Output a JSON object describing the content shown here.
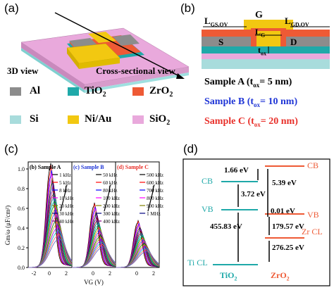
{
  "panel_a": {
    "tag": "(a)",
    "caption_3d": "3D view",
    "caption_cross": "Cross-sectional view",
    "legend": [
      {
        "label": "Al",
        "color": "#8c8c8c"
      },
      {
        "label": "TiO",
        "sub": "2",
        "color": "#1fa9a9"
      },
      {
        "label": "ZrO",
        "sub": "2",
        "color": "#ee5a35"
      },
      {
        "label": "Si",
        "color": "#a8dcdc"
      },
      {
        "label": "Ni/Au",
        "color": "#f2c811"
      },
      {
        "label": "SiO",
        "sub": "2",
        "color": "#e9a9dc"
      }
    ]
  },
  "panel_b": {
    "tag": "(b)",
    "labels": {
      "gs": "L",
      "gs_sub": "GS,OV",
      "g": "G",
      "gd": "L",
      "gd_sub": "GD,OV",
      "lg": "L",
      "lg_sub": "G",
      "s": "S",
      "d": "D",
      "tox": "t",
      "tox_sub": "ox"
    },
    "samples": [
      {
        "name": "Sample A",
        "value": "5 nm",
        "color": "#000000"
      },
      {
        "name": "Sample B",
        "value": "10 nm",
        "color": "#1f35d6"
      },
      {
        "name": "Sample C",
        "value": "20 nm",
        "color": "#e8302a"
      }
    ]
  },
  "panel_c": {
    "tag": "(c)",
    "ylabel": "G",
    "ylabel_sub": "m",
    "ylabel_rest": "/ω (μF/cm²)",
    "xlabel": "V",
    "xlabel_sub": "G",
    "xlabel_rest": " (V)",
    "yticks": [
      "0.0",
      "0.2",
      "0.4",
      "0.6",
      "0.8",
      "1.0"
    ],
    "xticks": [
      "-2",
      "0",
      "2",
      "0",
      "2",
      "0",
      "2"
    ],
    "subpanels": [
      {
        "title": "(b) Sample A",
        "color": "#000000"
      },
      {
        "title": "(c) Sample B",
        "color": "#1f35d6"
      },
      {
        "title": "(d) Sample C",
        "color": "#e8302a"
      }
    ],
    "freq_arrow": "f",
    "legend_col1": [
      "1 kHz",
      "5 kHz",
      "8 kHz",
      "10 kHz",
      "20 kHz",
      "30 kHz",
      "40 kHz"
    ],
    "legend_col2": [
      "50 kHz",
      "60 kHz",
      "80 kHz",
      "100 kHz",
      "200 kHz",
      "300 kHz",
      "400 kHz"
    ],
    "legend_col3": [
      "500 kHz",
      "600 kHz",
      "700 kHz",
      "800 kHz",
      "900 kHz",
      "1 MHz"
    ],
    "curve_colors": [
      "#000000",
      "#ff0000",
      "#0000ff",
      "#ff00ff",
      "#808000",
      "#000080",
      "#800080",
      "#800000",
      "#008080",
      "#00aaaa",
      "#00a000",
      "#ff8000",
      "#4040ff",
      "#ff40a0",
      "#008000",
      "#c0a000",
      "#a000ff",
      "#00c0c0",
      "#ff6060",
      "#6060c0"
    ]
  },
  "panel_d": {
    "tag": "(d)",
    "cb_left": "CB",
    "vb_left": "VB",
    "cb_right": "CB",
    "vb_right": "VB",
    "ti_cl": "Ti CL",
    "zr_cl": "Zr CL",
    "e1": "1.66 eV",
    "e2": "5.39 eV",
    "e3": "3.72 eV",
    "e4": "0.01 eV",
    "e5": "455.83 eV",
    "e6": "179.57 eV",
    "e7": "276.25 eV",
    "tio2": "TiO",
    "tio2_sub": "2",
    "zro2": "ZrO",
    "zro2_sub": "2"
  }
}
